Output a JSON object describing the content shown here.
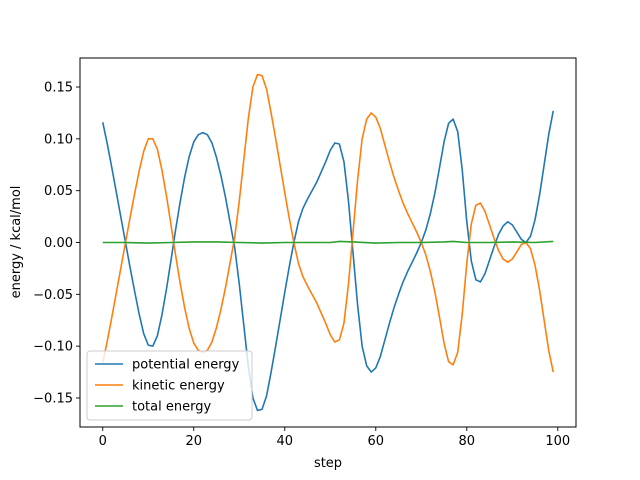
{
  "chart_data": {
    "type": "line",
    "title": "",
    "xlabel": "step",
    "ylabel": "energy / kcal/mol",
    "xlim": [
      -5,
      104
    ],
    "ylim": [
      -0.178,
      0.178
    ],
    "xticks": [
      0,
      20,
      40,
      60,
      80,
      100
    ],
    "yticks": [
      -0.15,
      -0.1,
      -0.05,
      0.0,
      0.05,
      0.1,
      0.15
    ],
    "xtick_labels": [
      "0",
      "20",
      "40",
      "60",
      "80",
      "100"
    ],
    "ytick_labels": [
      "−0.15",
      "−0.10",
      "−0.05",
      "0.00",
      "0.05",
      "0.10",
      "0.15"
    ],
    "grid": false,
    "legend_position": "lower-left",
    "series": [
      {
        "name": "potential energy",
        "color": "#1f77b4",
        "points": [
          [
            0,
            0.116
          ],
          [
            1,
            0.095
          ],
          [
            2,
            0.072
          ],
          [
            3,
            0.048
          ],
          [
            4,
            0.024
          ],
          [
            5,
            0.0
          ],
          [
            6,
            -0.024
          ],
          [
            7,
            -0.047
          ],
          [
            8,
            -0.069
          ],
          [
            9,
            -0.088
          ],
          [
            10,
            -0.099
          ],
          [
            11,
            -0.1
          ],
          [
            12,
            -0.09
          ],
          [
            13,
            -0.07
          ],
          [
            14,
            -0.045
          ],
          [
            15,
            -0.017
          ],
          [
            16,
            0.012
          ],
          [
            17,
            0.039
          ],
          [
            18,
            0.063
          ],
          [
            19,
            0.083
          ],
          [
            20,
            0.097
          ],
          [
            21,
            0.104
          ],
          [
            22,
            0.106
          ],
          [
            23,
            0.104
          ],
          [
            24,
            0.096
          ],
          [
            25,
            0.082
          ],
          [
            26,
            0.064
          ],
          [
            27,
            0.043
          ],
          [
            28,
            0.019
          ],
          [
            29,
            -0.005
          ],
          [
            30,
            -0.04
          ],
          [
            31,
            -0.08
          ],
          [
            32,
            -0.12
          ],
          [
            33,
            -0.15
          ],
          [
            34,
            -0.162
          ],
          [
            35,
            -0.161
          ],
          [
            36,
            -0.148
          ],
          [
            37,
            -0.125
          ],
          [
            38,
            -0.1
          ],
          [
            39,
            -0.074
          ],
          [
            40,
            -0.048
          ],
          [
            41,
            -0.023
          ],
          [
            42,
            0.0
          ],
          [
            43,
            0.02
          ],
          [
            44,
            0.033
          ],
          [
            45,
            0.042
          ],
          [
            46,
            0.05
          ],
          [
            47,
            0.058
          ],
          [
            48,
            0.068
          ],
          [
            49,
            0.078
          ],
          [
            50,
            0.089
          ],
          [
            51,
            0.096
          ],
          [
            52,
            0.095
          ],
          [
            53,
            0.078
          ],
          [
            54,
            0.04
          ],
          [
            55,
            -0.01
          ],
          [
            56,
            -0.06
          ],
          [
            57,
            -0.1
          ],
          [
            58,
            -0.119
          ],
          [
            59,
            -0.125
          ],
          [
            60,
            -0.121
          ],
          [
            61,
            -0.11
          ],
          [
            62,
            -0.094
          ],
          [
            63,
            -0.078
          ],
          [
            64,
            -0.063
          ],
          [
            65,
            -0.05
          ],
          [
            66,
            -0.038
          ],
          [
            67,
            -0.028
          ],
          [
            68,
            -0.019
          ],
          [
            69,
            -0.01
          ],
          [
            70,
            0.0
          ],
          [
            71,
            0.012
          ],
          [
            72,
            0.028
          ],
          [
            73,
            0.048
          ],
          [
            74,
            0.072
          ],
          [
            75,
            0.097
          ],
          [
            76,
            0.115
          ],
          [
            77,
            0.119
          ],
          [
            78,
            0.107
          ],
          [
            79,
            0.07
          ],
          [
            80,
            0.02
          ],
          [
            81,
            -0.018
          ],
          [
            82,
            -0.036
          ],
          [
            83,
            -0.038
          ],
          [
            84,
            -0.03
          ],
          [
            85,
            -0.017
          ],
          [
            86,
            -0.004
          ],
          [
            87,
            0.008
          ],
          [
            88,
            0.016
          ],
          [
            89,
            0.02
          ],
          [
            90,
            0.017
          ],
          [
            91,
            0.01
          ],
          [
            92,
            0.003
          ],
          [
            93,
            0.0
          ],
          [
            94,
            0.006
          ],
          [
            95,
            0.022
          ],
          [
            96,
            0.046
          ],
          [
            97,
            0.075
          ],
          [
            98,
            0.104
          ],
          [
            99,
            0.127
          ]
        ]
      },
      {
        "name": "kinetic energy",
        "color": "#ff7f0e",
        "points": [
          [
            0,
            -0.116
          ],
          [
            1,
            -0.095
          ],
          [
            2,
            -0.072
          ],
          [
            3,
            -0.048
          ],
          [
            4,
            -0.024
          ],
          [
            5,
            0.0
          ],
          [
            6,
            0.024
          ],
          [
            7,
            0.047
          ],
          [
            8,
            0.069
          ],
          [
            9,
            0.088
          ],
          [
            10,
            0.1
          ],
          [
            11,
            0.1
          ],
          [
            12,
            0.09
          ],
          [
            13,
            0.07
          ],
          [
            14,
            0.045
          ],
          [
            15,
            0.017
          ],
          [
            16,
            -0.012
          ],
          [
            17,
            -0.039
          ],
          [
            18,
            -0.063
          ],
          [
            19,
            -0.083
          ],
          [
            20,
            -0.097
          ],
          [
            21,
            -0.104
          ],
          [
            22,
            -0.106
          ],
          [
            23,
            -0.104
          ],
          [
            24,
            -0.096
          ],
          [
            25,
            -0.082
          ],
          [
            26,
            -0.064
          ],
          [
            27,
            -0.043
          ],
          [
            28,
            -0.019
          ],
          [
            29,
            0.005
          ],
          [
            30,
            0.04
          ],
          [
            31,
            0.08
          ],
          [
            32,
            0.12
          ],
          [
            33,
            0.15
          ],
          [
            34,
            0.162
          ],
          [
            35,
            0.161
          ],
          [
            36,
            0.148
          ],
          [
            37,
            0.125
          ],
          [
            38,
            0.1
          ],
          [
            39,
            0.074
          ],
          [
            40,
            0.048
          ],
          [
            41,
            0.023
          ],
          [
            42,
            0.0
          ],
          [
            43,
            -0.02
          ],
          [
            44,
            -0.033
          ],
          [
            45,
            -0.042
          ],
          [
            46,
            -0.05
          ],
          [
            47,
            -0.058
          ],
          [
            48,
            -0.068
          ],
          [
            49,
            -0.078
          ],
          [
            50,
            -0.089
          ],
          [
            51,
            -0.096
          ],
          [
            52,
            -0.094
          ],
          [
            53,
            -0.078
          ],
          [
            54,
            -0.04
          ],
          [
            55,
            0.01
          ],
          [
            56,
            0.06
          ],
          [
            57,
            0.1
          ],
          [
            58,
            0.119
          ],
          [
            59,
            0.125
          ],
          [
            60,
            0.121
          ],
          [
            61,
            0.11
          ],
          [
            62,
            0.094
          ],
          [
            63,
            0.078
          ],
          [
            64,
            0.063
          ],
          [
            65,
            0.05
          ],
          [
            66,
            0.038
          ],
          [
            67,
            0.028
          ],
          [
            68,
            0.019
          ],
          [
            69,
            0.01
          ],
          [
            70,
            0.0
          ],
          [
            71,
            -0.012
          ],
          [
            72,
            -0.028
          ],
          [
            73,
            -0.048
          ],
          [
            74,
            -0.072
          ],
          [
            75,
            -0.097
          ],
          [
            76,
            -0.115
          ],
          [
            77,
            -0.118
          ],
          [
            78,
            -0.106
          ],
          [
            79,
            -0.069
          ],
          [
            80,
            -0.02
          ],
          [
            81,
            0.018
          ],
          [
            82,
            0.036
          ],
          [
            83,
            0.038
          ],
          [
            84,
            0.03
          ],
          [
            85,
            0.017
          ],
          [
            86,
            0.004
          ],
          [
            87,
            -0.008
          ],
          [
            88,
            -0.016
          ],
          [
            89,
            -0.019
          ],
          [
            90,
            -0.016
          ],
          [
            91,
            -0.009
          ],
          [
            92,
            -0.002
          ],
          [
            93,
            -0.0
          ],
          [
            94,
            -0.006
          ],
          [
            95,
            -0.022
          ],
          [
            96,
            -0.046
          ],
          [
            97,
            -0.075
          ],
          [
            98,
            -0.104
          ],
          [
            99,
            -0.125
          ]
        ]
      },
      {
        "name": "total energy",
        "color": "#2ca02c",
        "points": [
          [
            0,
            0.0
          ],
          [
            5,
            0.0
          ],
          [
            10,
            -0.0005
          ],
          [
            15,
            0.0
          ],
          [
            20,
            0.0005
          ],
          [
            25,
            0.0005
          ],
          [
            30,
            0.0
          ],
          [
            35,
            -0.0005
          ],
          [
            40,
            0.0
          ],
          [
            45,
            0.0
          ],
          [
            50,
            0.0
          ],
          [
            52,
            0.001
          ],
          [
            55,
            0.0005
          ],
          [
            60,
            -0.0005
          ],
          [
            65,
            0.0
          ],
          [
            70,
            0.0
          ],
          [
            75,
            0.0005
          ],
          [
            77,
            0.001
          ],
          [
            80,
            0.0
          ],
          [
            85,
            0.0
          ],
          [
            90,
            0.0005
          ],
          [
            95,
            0.0
          ],
          [
            99,
            0.001
          ]
        ]
      }
    ]
  }
}
